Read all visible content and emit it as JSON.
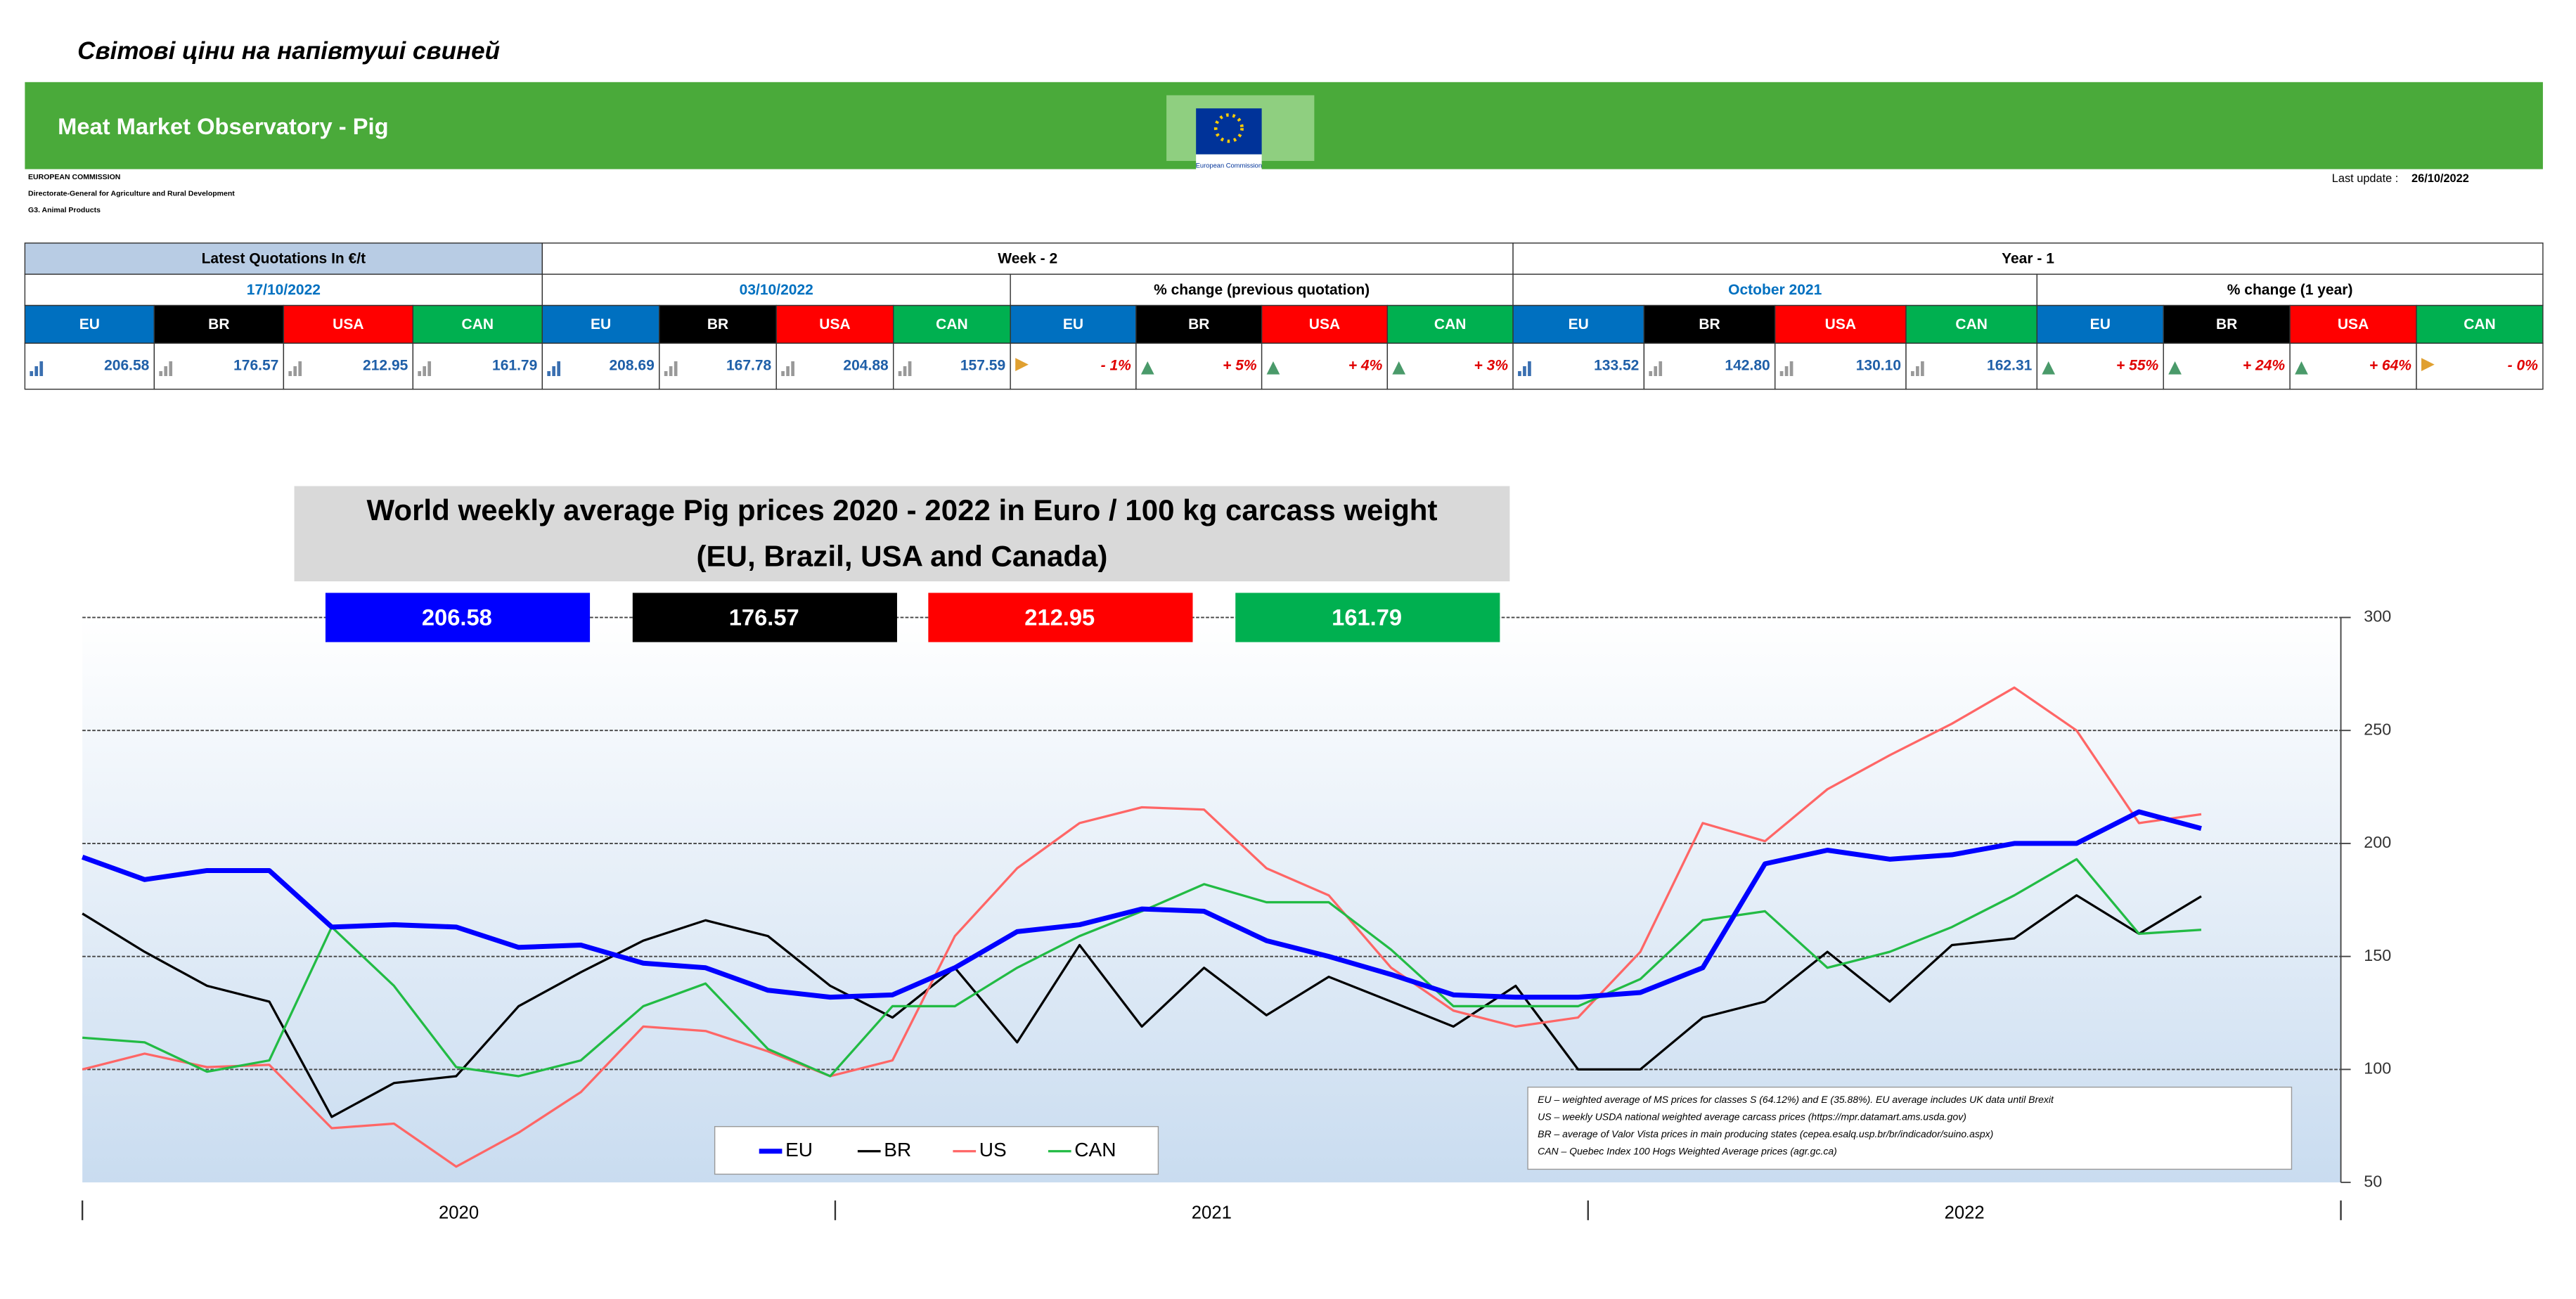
{
  "header": {
    "page_title": "Світові ціни на напівтуші свиней",
    "banner": "Meat Market Observatory - Pig",
    "logo_text": "European Commission",
    "org_lines": [
      "EUROPEAN COMMISSION",
      "Directorate-General for Agriculture and Rural Development",
      "G3. Animal Products"
    ],
    "last_update_label": "Last update :",
    "last_update": "26/10/2022"
  },
  "table": {
    "groups": [
      "Latest Quotations In €/t",
      "Week - 2",
      "Year - 1"
    ],
    "subheaders": [
      "17/10/2022",
      "03/10/2022",
      "% change (previous quotation)",
      "October 2021",
      "% change (1 year)"
    ],
    "columns": [
      "EU",
      "BR",
      "USA",
      "CAN"
    ],
    "values": [
      [
        "206.58",
        "176.57",
        "212.95",
        "161.79"
      ],
      [
        "208.69",
        "167.78",
        "204.88",
        "157.59"
      ],
      [
        "- 1%",
        "+ 5%",
        "+ 4%",
        "+ 3%"
      ],
      [
        "133.52",
        "142.80",
        "130.10",
        "162.31"
      ],
      [
        "+ 55%",
        "+ 24%",
        "+ 64%",
        "- 0%"
      ]
    ]
  },
  "chart_data": {
    "type": "line",
    "title": "World weekly average Pig prices 2020 - 2022  in Euro / 100 kg carcass weight",
    "subtitle": "(EU, Brazil, USA and Canada)",
    "x_labels": [
      "2020",
      "2021",
      "2022"
    ],
    "ylim": [
      50,
      300
    ],
    "yticks": [
      50,
      100,
      150,
      200,
      250,
      300
    ],
    "grid": true,
    "series": [
      {
        "name": "EU",
        "color": "#0000ff",
        "values": [
          194,
          184,
          188,
          188,
          163,
          164,
          163,
          154,
          155,
          147,
          145,
          135,
          132,
          133,
          145,
          161,
          164,
          171,
          170,
          157,
          150,
          142,
          133,
          132,
          132,
          134,
          145,
          191,
          197,
          193,
          195,
          200,
          200,
          214,
          206.58
        ]
      },
      {
        "name": "BR",
        "color": "#000000",
        "values": [
          169,
          152,
          137,
          130,
          79,
          94,
          97,
          128,
          143,
          157,
          166,
          159,
          137,
          123,
          145,
          112,
          155,
          119,
          145,
          124,
          141,
          130,
          119,
          137,
          100,
          100,
          123,
          130,
          152,
          130,
          155,
          158,
          177,
          160,
          176.57
        ]
      },
      {
        "name": "US",
        "color": "#ff6666",
        "values": [
          100,
          107,
          101,
          102,
          74,
          76,
          57,
          72,
          90,
          119,
          117,
          108,
          97,
          104,
          159,
          189,
          209,
          216,
          215,
          189,
          177,
          145,
          126,
          119,
          123,
          152,
          209,
          201,
          224,
          239,
          253,
          269,
          250,
          209,
          212.95
        ]
      },
      {
        "name": "CAN",
        "color": "#22bb44",
        "values": [
          114,
          112,
          99,
          104,
          163,
          137,
          101,
          97,
          104,
          128,
          138,
          109,
          97,
          128,
          128,
          145,
          159,
          170,
          182,
          174,
          174,
          153,
          128,
          128,
          128,
          140,
          166,
          170,
          145,
          152,
          163,
          177,
          193,
          160,
          161.79
        ]
      }
    ],
    "notes": [
      "EU   – weighted average of MS prices for classes S (64.12%) and E (35.88%). EU average includes UK data  until Brexit",
      "US   – weekly USDA national weighted average carcass prices (https://mpr.datamart.ams.usda.gov)",
      "BR   – average of Valor Vista prices in main producing states (cepea.esalq.usp.br/br/indicador/suino.aspx)",
      "CAN – Quebec Index 100 Hogs Weighted Average prices (agr.gc.ca)"
    ]
  }
}
